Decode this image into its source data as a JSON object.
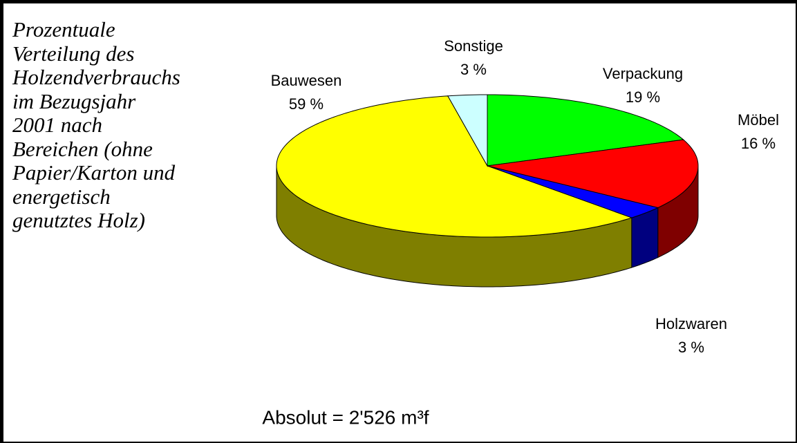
{
  "chart_data": {
    "type": "pie",
    "title": "Prozentuale\nVerteilung des\nHolzendverbrauchs\nim Bezugsjahr\n2001 nach\nBereichen (ohne\nPapier/Karton und\nenergetisch\ngenutztes Holz)",
    "categories": [
      "Verpackung",
      "Möbel",
      "Holzwaren",
      "Bauwesen",
      "Sonstige"
    ],
    "values": [
      19,
      16,
      3,
      59,
      3
    ],
    "value_labels": [
      "19 %",
      "16 %",
      "3 %",
      "59 %",
      "3 %"
    ],
    "colors": [
      "#00ff00",
      "#ff0000",
      "#0000ff",
      "#ffff00",
      "#ccffff"
    ],
    "annotation": "Absolut = 2'526 m³f"
  }
}
